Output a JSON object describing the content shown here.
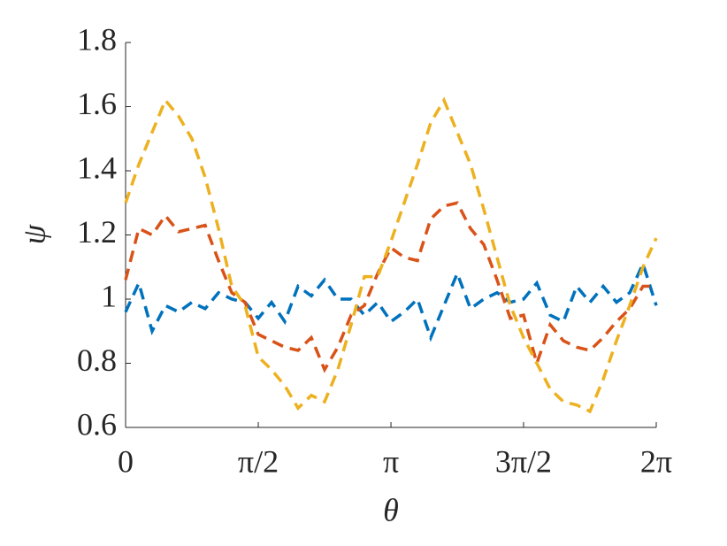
{
  "chart_data": {
    "type": "line",
    "xlabel": "θ",
    "ylabel": "ψ",
    "x": [
      0,
      0.157,
      0.314,
      0.471,
      0.628,
      0.785,
      0.942,
      1.1,
      1.257,
      1.414,
      1.571,
      1.728,
      1.885,
      2.042,
      2.199,
      2.356,
      2.513,
      2.67,
      2.827,
      2.985,
      3.142,
      3.299,
      3.456,
      3.613,
      3.77,
      3.927,
      4.084,
      4.241,
      4.398,
      4.555,
      4.712,
      4.869,
      5.027,
      5.184,
      5.341,
      5.498,
      5.655,
      5.812,
      5.969,
      6.126,
      6.283
    ],
    "series": [
      {
        "color": "#0072bd",
        "values": [
          0.96,
          1.05,
          0.9,
          0.98,
          0.96,
          0.99,
          0.97,
          1.02,
          1.0,
          0.99,
          0.94,
          0.99,
          0.93,
          1.04,
          1.01,
          1.06,
          1.0,
          1.0,
          0.95,
          0.99,
          0.93,
          0.96,
          1.0,
          0.88,
          0.98,
          1.08,
          0.97,
          1.0,
          1.02,
          0.99,
          1.0,
          1.05,
          0.95,
          0.93,
          1.04,
          0.99,
          1.04,
          0.99,
          1.02,
          1.11,
          0.98
        ]
      },
      {
        "color": "#d95319",
        "values": [
          1.06,
          1.22,
          1.2,
          1.26,
          1.21,
          1.22,
          1.23,
          1.12,
          1.02,
          0.99,
          0.89,
          0.87,
          0.85,
          0.84,
          0.88,
          0.78,
          0.85,
          0.95,
          0.98,
          1.08,
          1.16,
          1.13,
          1.12,
          1.25,
          1.29,
          1.3,
          1.22,
          1.17,
          1.06,
          0.94,
          0.95,
          0.8,
          0.92,
          0.87,
          0.85,
          0.84,
          0.88,
          0.93,
          0.97,
          1.04,
          1.04
        ]
      },
      {
        "color": "#edb120",
        "values": [
          1.3,
          1.42,
          1.52,
          1.62,
          1.57,
          1.5,
          1.38,
          1.22,
          1.04,
          0.98,
          0.82,
          0.78,
          0.73,
          0.66,
          0.7,
          0.68,
          0.78,
          0.92,
          1.07,
          1.07,
          1.18,
          1.3,
          1.42,
          1.55,
          1.62,
          1.52,
          1.42,
          1.28,
          1.13,
          0.98,
          0.88,
          0.8,
          0.72,
          0.68,
          0.67,
          0.65,
          0.75,
          0.87,
          0.98,
          1.1,
          1.19
        ]
      }
    ],
    "xlim": [
      0,
      6.283
    ],
    "xticks": [
      0,
      {
        "value": 1.571,
        "label": "π/2"
      },
      {
        "value": 3.142,
        "label": "π"
      },
      {
        "value": 4.712,
        "label": "3π/2"
      },
      {
        "value": 6.283,
        "label": "2π"
      }
    ],
    "ylim": [
      0.6,
      1.8
    ],
    "yticks": [
      0.6,
      0.8,
      1,
      1.2,
      1.4,
      1.6,
      1.8
    ],
    "dashed": true
  }
}
